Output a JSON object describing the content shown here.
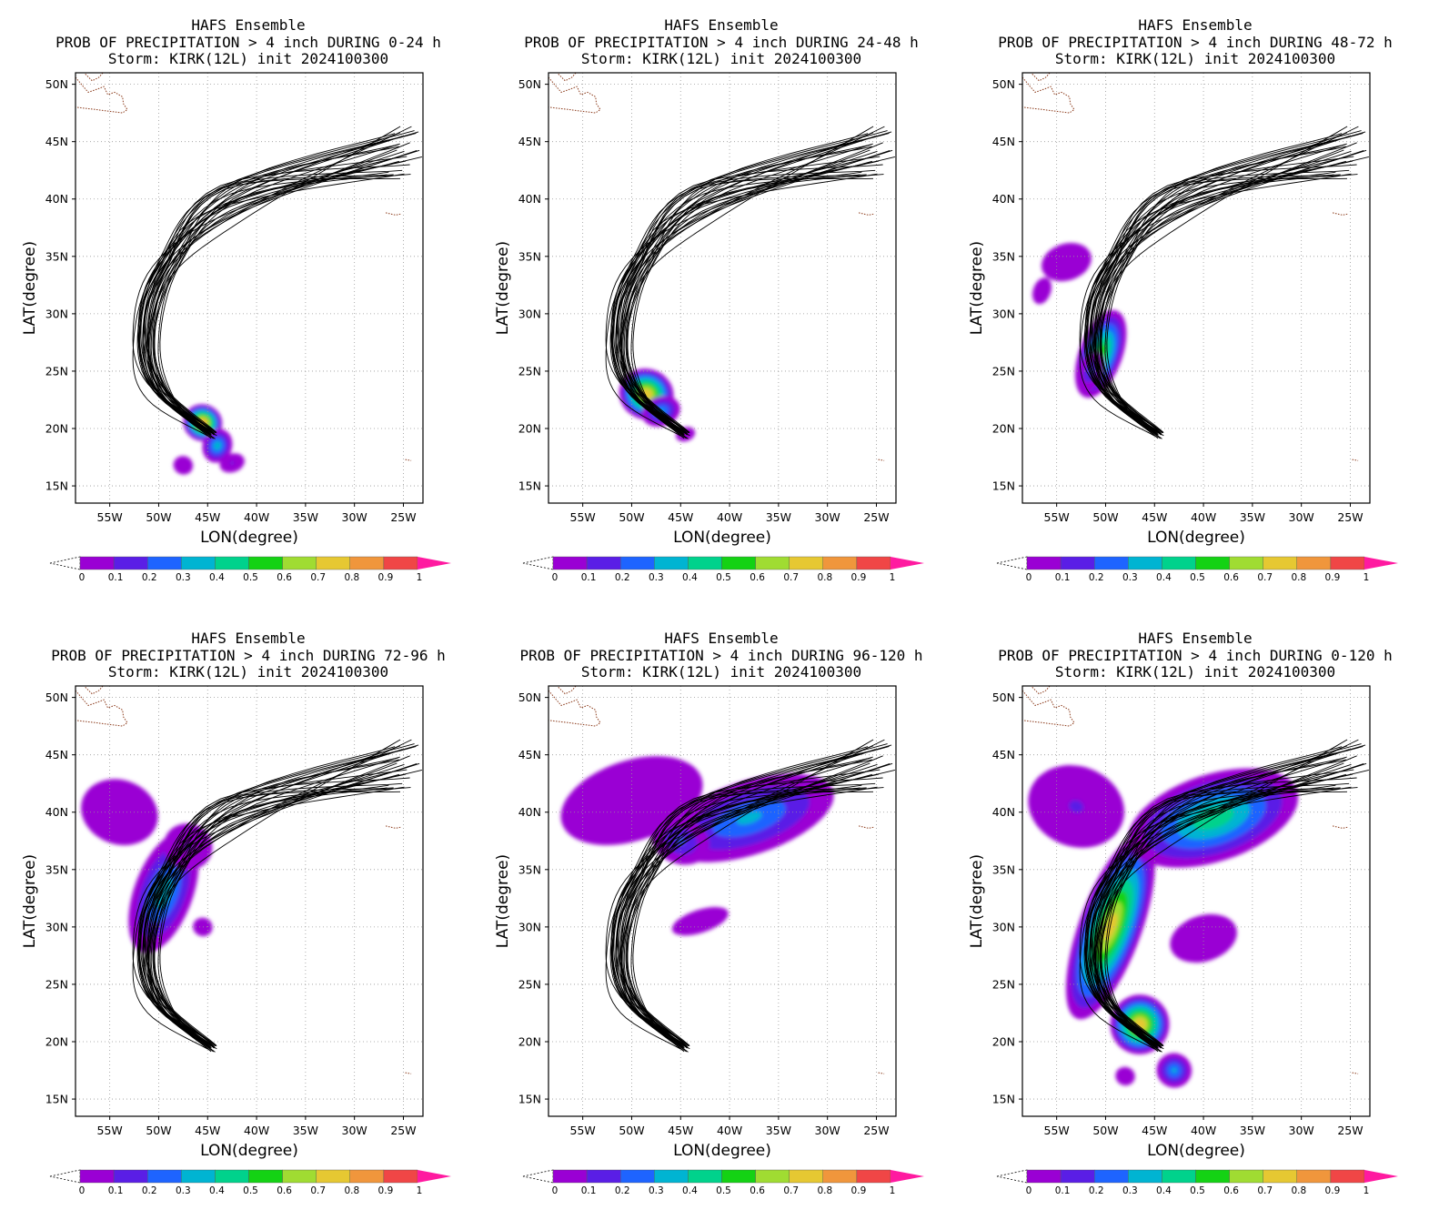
{
  "common": {
    "title_line1": "HAFS Ensemble",
    "title_line3": "Storm: KIRK(12L) init 2024100300",
    "xlabel": "LON(degree)",
    "ylabel": "LAT(degree)",
    "lat_ticks": [
      "50N",
      "45N",
      "40N",
      "35N",
      "30N",
      "25N",
      "20N",
      "15N"
    ],
    "lon_ticks": [
      "55W",
      "50W",
      "45W",
      "40W",
      "35W",
      "30W",
      "25W"
    ],
    "colorbar_labels": [
      "0",
      "0.1",
      "0.2",
      "0.3",
      "0.4",
      "0.5",
      "0.6",
      "0.7",
      "0.8",
      "0.9",
      "1"
    ],
    "colorbar_colors": [
      "#9a00d4",
      "#5a1ee6",
      "#1e64ff",
      "#00b4d2",
      "#00d28c",
      "#14d214",
      "#a0dc32",
      "#e6c832",
      "#f0963c",
      "#f04646"
    ],
    "colorbar_over_color": "#ff1aa0",
    "land_outline_color": "#8b3a1a"
  },
  "panels": [
    {
      "title_line2": "PROB OF PRECIPITATION > 4 inch DURING  0-24 h",
      "period": "0-24 h"
    },
    {
      "title_line2": "PROB OF PRECIPITATION > 4 inch DURING 24-48 h",
      "period": "24-48 h"
    },
    {
      "title_line2": "PROB OF PRECIPITATION > 4 inch DURING 48-72 h",
      "period": "48-72 h"
    },
    {
      "title_line2": "PROB OF PRECIPITATION > 4 inch DURING 72-96 h",
      "period": "72-96 h"
    },
    {
      "title_line2": "PROB OF PRECIPITATION > 4 inch DURING 96-120 h",
      "period": "96-120 h"
    },
    {
      "title_line2": "PROB OF PRECIPITATION > 4 inch DURING 0-120 h",
      "period": "0-120 h"
    }
  ],
  "chart_data": {
    "type": "map",
    "lon_range": [
      -58.5,
      -23
    ],
    "lat_range": [
      13.5,
      51
    ],
    "grid": true,
    "track_start": [
      -44.5,
      19.5
    ],
    "track_turn_lon": -50.5,
    "track_ends_lon": [
      -27,
      -23
    ],
    "track_ends_lat": [
      41.5,
      46.5
    ],
    "precip_blobs": [
      [
        {
          "lon": -45.5,
          "lat": 20.5,
          "rlon": 2.0,
          "rlat": 1.6,
          "p": 0.8
        },
        {
          "lon": -44.0,
          "lat": 18.5,
          "rlon": 1.5,
          "rlat": 1.5,
          "p": 0.35
        },
        {
          "lon": -42.5,
          "lat": 17.0,
          "rlon": 1.3,
          "rlat": 0.8,
          "p": 0.1
        },
        {
          "lon": -47.5,
          "lat": 16.8,
          "rlon": 1.0,
          "rlat": 0.8,
          "p": 0.05
        }
      ],
      [
        {
          "lon": -48.5,
          "lat": 23.0,
          "rlon": 2.8,
          "rlat": 2.2,
          "p": 0.75
        },
        {
          "lon": -47.0,
          "lat": 21.5,
          "rlon": 2.0,
          "rlat": 1.3,
          "p": 0.3
        },
        {
          "lon": -44.5,
          "lat": 19.5,
          "rlon": 1.0,
          "rlat": 0.6,
          "p": 0.05
        }
      ],
      [
        {
          "lon": -50.5,
          "lat": 26.5,
          "rlon": 2.2,
          "rlat": 4.0,
          "p": 0.55
        },
        {
          "lon": -51.5,
          "lat": 25.0,
          "rlon": 1.2,
          "rlat": 1.8,
          "p": 0.2
        },
        {
          "lon": -54.0,
          "lat": 34.5,
          "rlon": 2.6,
          "rlat": 1.6,
          "p": 0.05
        },
        {
          "lon": -56.5,
          "lat": 32.0,
          "rlon": 0.9,
          "rlat": 1.2,
          "p": 0.05
        }
      ],
      [
        {
          "lon": -49.5,
          "lat": 33.0,
          "rlon": 3.0,
          "rlat": 5.5,
          "p": 0.35
        },
        {
          "lon": -54.0,
          "lat": 40.0,
          "rlon": 4.0,
          "rlat": 2.8,
          "p": 0.05
        },
        {
          "lon": -47.0,
          "lat": 37.0,
          "rlon": 2.5,
          "rlat": 2.0,
          "p": 0.1
        },
        {
          "lon": -45.5,
          "lat": 30.0,
          "rlon": 1.0,
          "rlat": 0.8,
          "p": 0.05
        }
      ],
      [
        {
          "lon": -38.0,
          "lat": 39.5,
          "rlon": 9.0,
          "rlat": 3.2,
          "p": 0.3
        },
        {
          "lon": -50.0,
          "lat": 41.0,
          "rlon": 7.5,
          "rlat": 3.5,
          "p": 0.05
        },
        {
          "lon": -45.0,
          "lat": 37.5,
          "rlon": 3.0,
          "rlat": 2.0,
          "p": 0.2
        },
        {
          "lon": -43.0,
          "lat": 30.5,
          "rlon": 3.0,
          "rlat": 1.0,
          "p": 0.05
        }
      ],
      [
        {
          "lon": -49.5,
          "lat": 30.0,
          "rlon": 3.2,
          "rlat": 8.5,
          "p": 0.7
        },
        {
          "lon": -46.5,
          "lat": 21.5,
          "rlon": 3.0,
          "rlat": 2.6,
          "p": 0.75
        },
        {
          "lon": -39.0,
          "lat": 39.5,
          "rlon": 9.0,
          "rlat": 3.8,
          "p": 0.45
        },
        {
          "lon": -53.0,
          "lat": 40.5,
          "rlon": 5.0,
          "rlat": 3.5,
          "p": 0.1
        },
        {
          "lon": -40.0,
          "lat": 29.0,
          "rlon": 3.5,
          "rlat": 2.0,
          "p": 0.08
        },
        {
          "lon": -43.0,
          "lat": 17.5,
          "rlon": 1.8,
          "rlat": 1.5,
          "p": 0.3
        },
        {
          "lon": -48.0,
          "lat": 17.0,
          "rlon": 1.0,
          "rlat": 0.8,
          "p": 0.05
        }
      ]
    ]
  }
}
